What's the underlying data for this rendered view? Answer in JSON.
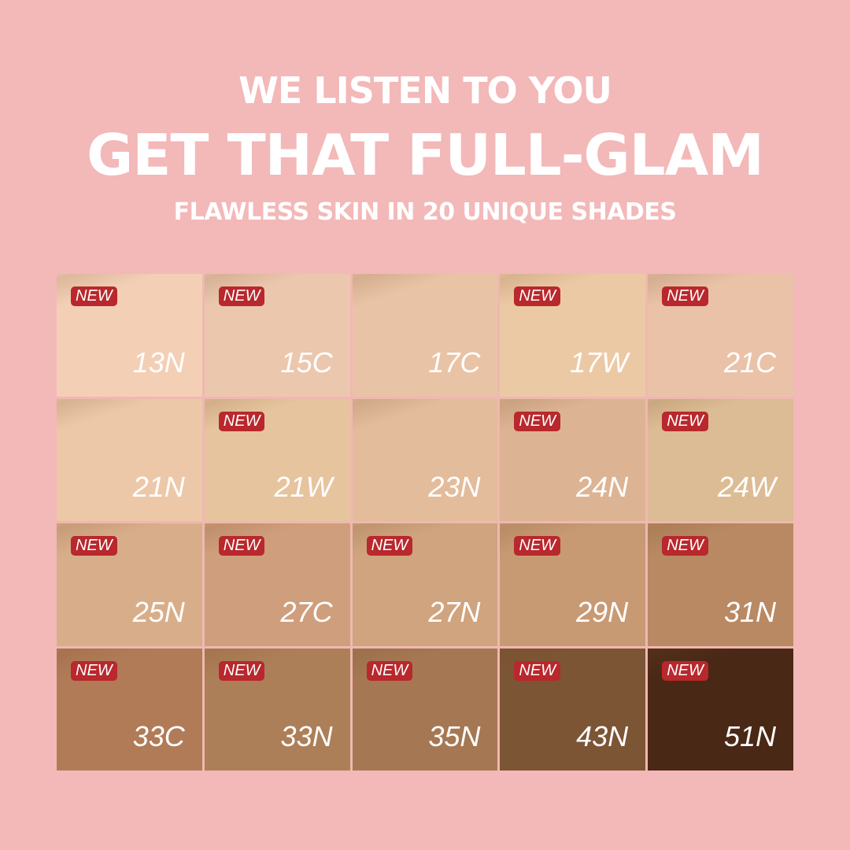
{
  "header": {
    "line1": "WE LISTEN TO YOU",
    "line2": "GET THAT FULL-GLAM",
    "line3": "FLAWLESS SKIN IN 20 UNIQUE SHADES"
  },
  "badge_label": "NEW",
  "shades": [
    {
      "code": "13N",
      "new": true,
      "color": "#f3cfb6"
    },
    {
      "code": "15C",
      "new": true,
      "color": "#ebc7ae"
    },
    {
      "code": "17C",
      "new": false,
      "color": "#e9c3a6"
    },
    {
      "code": "17W",
      "new": true,
      "color": "#ecc9a5"
    },
    {
      "code": "21C",
      "new": true,
      "color": "#e9c2a8"
    },
    {
      "code": "21N",
      "new": false,
      "color": "#ecc8a9"
    },
    {
      "code": "21W",
      "new": true,
      "color": "#e6c49e"
    },
    {
      "code": "23N",
      "new": false,
      "color": "#e3bc9c"
    },
    {
      "code": "24N",
      "new": true,
      "color": "#dcb494"
    },
    {
      "code": "24W",
      "new": true,
      "color": "#dcbc94"
    },
    {
      "code": "25N",
      "new": true,
      "color": "#d8ae8a"
    },
    {
      "code": "27C",
      "new": true,
      "color": "#cf9e7c"
    },
    {
      "code": "27N",
      "new": true,
      "color": "#cfa47e"
    },
    {
      "code": "29N",
      "new": true,
      "color": "#c89a74"
    },
    {
      "code": "31N",
      "new": true,
      "color": "#b88963"
    },
    {
      "code": "33C",
      "new": true,
      "color": "#b17b58"
    },
    {
      "code": "33N",
      "new": true,
      "color": "#ad7f58"
    },
    {
      "code": "35N",
      "new": true,
      "color": "#a57853"
    },
    {
      "code": "43N",
      "new": true,
      "color": "#7c5535"
    },
    {
      "code": "51N",
      "new": true,
      "color": "#4a2816"
    }
  ],
  "colors": {
    "background": "#f3b8b8",
    "badge": "#b8282c"
  }
}
